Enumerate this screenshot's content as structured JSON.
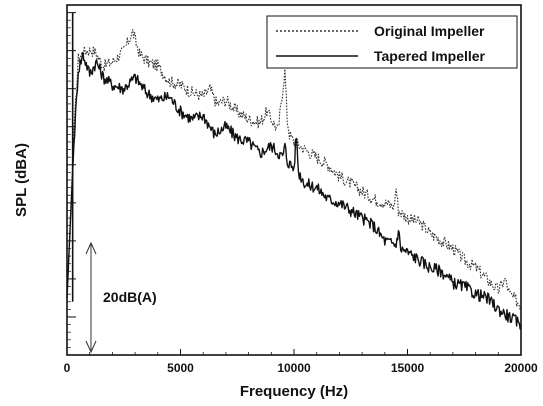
{
  "chart_data": {
    "type": "line",
    "title": "",
    "xlabel": "Frequency (Hz)",
    "ylabel": "SPL (dBA)",
    "xlim": [
      0,
      20000
    ],
    "x_ticks": [
      0,
      5000,
      10000,
      15000,
      20000
    ],
    "y_ticks_labeled": false,
    "grid": false,
    "legend_position": "top-right",
    "scale_annotation": "20dB(A)",
    "scale_bar_db": 20,
    "series": [
      {
        "name": "Original Impeller",
        "style": "dotted",
        "color": "#333333",
        "x": [
          0,
          300,
          500,
          800,
          1200,
          1600,
          2000,
          2500,
          2900,
          3200,
          3600,
          4000,
          4500,
          5000,
          5500,
          6000,
          6300,
          6600,
          7000,
          7500,
          8000,
          8500,
          8800,
          9000,
          9300,
          9600,
          9700,
          9800,
          10000,
          10500,
          11000,
          11500,
          12000,
          12500,
          13000,
          13500,
          14000,
          14400,
          14500,
          14600,
          15000,
          15500,
          16000,
          16500,
          17000,
          17500,
          18000,
          18500,
          19000,
          19300,
          19500,
          20000
        ],
        "y": [
          15,
          58,
          78,
          80,
          80,
          76,
          77,
          80,
          85,
          79,
          77,
          76,
          72,
          71,
          69,
          68,
          70,
          66,
          67,
          64,
          62,
          61,
          64,
          62,
          59,
          75,
          62,
          58,
          56,
          54,
          52,
          50,
          47,
          45,
          43,
          41,
          40,
          39,
          44,
          38,
          36,
          35,
          32,
          30,
          28,
          25,
          23,
          20,
          17,
          20,
          16,
          13
        ]
      },
      {
        "name": "Tapered Impeller",
        "style": "solid",
        "color": "#111111",
        "x": [
          0,
          300,
          500,
          700,
          1000,
          1300,
          1600,
          2000,
          2500,
          3000,
          3500,
          4000,
          4500,
          5000,
          5500,
          6000,
          6500,
          7000,
          7500,
          8000,
          8500,
          9000,
          9500,
          9600,
          9700,
          10000,
          10100,
          10200,
          10500,
          11000,
          11500,
          12000,
          12500,
          13000,
          13500,
          14000,
          14500,
          14600,
          14700,
          15000,
          15500,
          16000,
          16500,
          17000,
          17500,
          18000,
          18500,
          19000,
          19500,
          20000
        ],
        "y": [
          15,
          55,
          75,
          79,
          74,
          77,
          73,
          71,
          70,
          73,
          69,
          67,
          68,
          64,
          62,
          63,
          58,
          60,
          57,
          56,
          53,
          55,
          52,
          55,
          51,
          49,
          58,
          48,
          45,
          44,
          41,
          40,
          38,
          36,
          34,
          30,
          29,
          33,
          28,
          27,
          25,
          23,
          22,
          19,
          18,
          16,
          15,
          12,
          10,
          8
        ]
      }
    ]
  }
}
